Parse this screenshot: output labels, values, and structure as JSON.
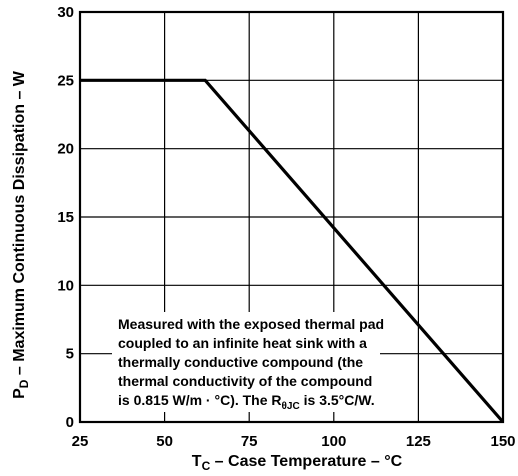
{
  "chart_data": {
    "type": "line",
    "x": [
      25,
      62,
      150
    ],
    "series": [
      {
        "values": [
          25,
          25,
          0
        ]
      }
    ],
    "xlim": [
      25,
      150
    ],
    "ylim": [
      0,
      30
    ],
    "x_ticks": [
      "25",
      "50",
      "75",
      "100",
      "125",
      "150"
    ],
    "y_ticks": [
      "0",
      "5",
      "10",
      "15",
      "20",
      "25",
      "30"
    ],
    "xlabel": {
      "symbol": "T",
      "subscript": "C",
      "text": " – Case Temperature – °C"
    },
    "ylabel": {
      "symbol": "P",
      "subscript": "D",
      "text": " – Maximum Continuous Dissipation – W"
    },
    "annotation": {
      "lines": [
        "Measured with the exposed thermal pad",
        "coupled to an infinite heat sink with a",
        "thermally conductive compound (the",
        "thermal conductivity of the compound"
      ],
      "last_line": {
        "prefix": "is 0.815 W/m · °C). The R",
        "subscript": "θJC",
        "suffix": " is 3.5°C/W."
      }
    },
    "grid": true,
    "colors": {
      "line": "#000000",
      "grid": "#000000",
      "background": "#ffffff"
    }
  }
}
